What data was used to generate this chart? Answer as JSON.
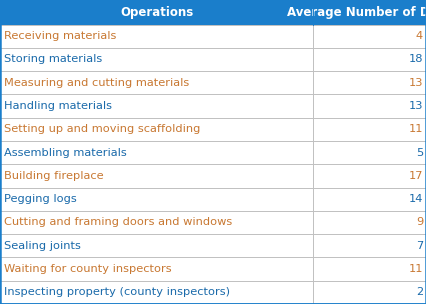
{
  "header": [
    "Operations",
    "Average Number of Days"
  ],
  "rows": [
    [
      "Receiving materials",
      "4"
    ],
    [
      "Storing materials",
      "18"
    ],
    [
      "Measuring and cutting materials",
      "13"
    ],
    [
      "Handling materials",
      "13"
    ],
    [
      "Setting up and moving scaffolding",
      "11"
    ],
    [
      "Assembling materials",
      "5"
    ],
    [
      "Building fireplace",
      "17"
    ],
    [
      "Pegging logs",
      "14"
    ],
    [
      "Cutting and framing doors and windows",
      "9"
    ],
    [
      "Sealing joints",
      "7"
    ],
    [
      "Waiting for county inspectors",
      "11"
    ],
    [
      "Inspecting property (county inspectors)",
      "2"
    ]
  ],
  "header_bg_color": "#1a7ecb",
  "header_text_color": "#ffffff",
  "row_text_color_odd": "#c87832",
  "row_text_color_even": "#1a6aaa",
  "border_color": "#1a7ecb",
  "divider_color": "#c0c0c0",
  "bg_color": "#ffffff",
  "col_split": 0.735,
  "header_fontsize": 8.5,
  "row_fontsize": 8.2
}
